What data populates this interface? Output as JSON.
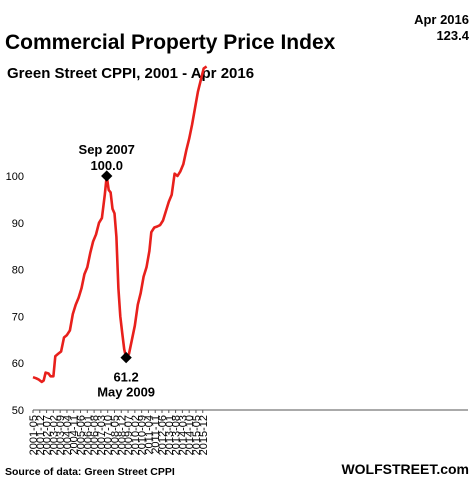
{
  "chart_data": {
    "type": "line",
    "title": "Commercial Property Price Index",
    "subtitle": "Green Street CPPI, 2001 - Apr 2016",
    "ylim": [
      50,
      125
    ],
    "yticks": [
      50,
      60,
      70,
      80,
      90,
      100
    ],
    "xtick_labels": [
      "2001-05",
      "2001-12",
      "2002-07",
      "2003-02",
      "2003-09",
      "2004-04",
      "2004-11",
      "2005-06",
      "2006-01",
      "2006-08",
      "2007-03",
      "2007-10",
      "2008-05",
      "2008-12",
      "2009-07",
      "2010-02",
      "2010-09",
      "2011-04",
      "2011-11",
      "2012-06",
      "2013-01",
      "2013-08",
      "2014-03",
      "2014-10",
      "2015-05",
      "2015-12"
    ],
    "grid": false,
    "color": "#e8201c",
    "series": [
      {
        "points": [
          [
            "2001-05",
            57.0
          ],
          [
            "2001-08",
            56.8
          ],
          [
            "2001-11",
            56.5
          ],
          [
            "2002-02",
            56.0
          ],
          [
            "2002-04",
            56.3
          ],
          [
            "2002-06",
            58.0
          ],
          [
            "2002-09",
            57.8
          ],
          [
            "2002-11",
            57.2
          ],
          [
            "2003-02",
            57.2
          ],
          [
            "2003-04",
            61.5
          ],
          [
            "2003-07",
            62.0
          ],
          [
            "2003-10",
            62.5
          ],
          [
            "2004-01",
            65.5
          ],
          [
            "2004-04",
            66.0
          ],
          [
            "2004-07",
            67.0
          ],
          [
            "2004-10",
            70.5
          ],
          [
            "2005-01",
            72.5
          ],
          [
            "2005-04",
            74.0
          ],
          [
            "2005-07",
            76.0
          ],
          [
            "2005-10",
            79.0
          ],
          [
            "2006-01",
            80.5
          ],
          [
            "2006-04",
            83.5
          ],
          [
            "2006-07",
            86.0
          ],
          [
            "2006-10",
            87.5
          ],
          [
            "2007-01",
            90.0
          ],
          [
            "2007-04",
            91.0
          ],
          [
            "2007-07",
            96.0
          ],
          [
            "2007-09",
            100.0
          ],
          [
            "2007-11",
            97.0
          ],
          [
            "2008-01",
            96.5
          ],
          [
            "2008-03",
            93.0
          ],
          [
            "2008-05",
            92.0
          ],
          [
            "2008-07",
            87.0
          ],
          [
            "2008-09",
            76.0
          ],
          [
            "2008-11",
            70.0
          ],
          [
            "2009-01",
            66.5
          ],
          [
            "2009-03",
            63.0
          ],
          [
            "2009-05",
            61.2
          ],
          [
            "2009-08",
            62.0
          ],
          [
            "2009-11",
            65.0
          ],
          [
            "2010-02",
            68.0
          ],
          [
            "2010-05",
            72.5
          ],
          [
            "2010-08",
            75.0
          ],
          [
            "2010-11",
            78.5
          ],
          [
            "2011-02",
            80.5
          ],
          [
            "2011-05",
            84.0
          ],
          [
            "2011-07",
            88.0
          ],
          [
            "2011-10",
            89.0
          ],
          [
            "2012-01",
            89.2
          ],
          [
            "2012-04",
            89.5
          ],
          [
            "2012-07",
            90.5
          ],
          [
            "2012-10",
            92.5
          ],
          [
            "2013-01",
            94.5
          ],
          [
            "2013-04",
            96.0
          ],
          [
            "2013-07",
            100.5
          ],
          [
            "2013-10",
            100.0
          ],
          [
            "2014-01",
            101.0
          ],
          [
            "2014-04",
            102.5
          ],
          [
            "2014-07",
            105.5
          ],
          [
            "2014-10",
            108.0
          ],
          [
            "2015-01",
            111.0
          ],
          [
            "2015-04",
            114.5
          ],
          [
            "2015-07",
            118.0
          ],
          [
            "2015-10",
            120.5
          ],
          [
            "2016-01",
            123.0
          ],
          [
            "2016-04",
            123.4
          ]
        ]
      }
    ],
    "annotations": [
      {
        "date": "2007-09",
        "value": 100.0,
        "line1": "Sep 2007",
        "line2": "100.0",
        "position": "above"
      },
      {
        "date": "2009-05",
        "value": 61.2,
        "line1": "61.2",
        "line2": "May 2009",
        "position": "below"
      },
      {
        "date": "2016-04",
        "value": 123.4,
        "line1": "Apr 2016",
        "line2": "123.4",
        "position": "above"
      }
    ]
  },
  "footer": {
    "source": "Source of data: Green Street CPPI",
    "brand": "WOLFSTREET.com"
  }
}
